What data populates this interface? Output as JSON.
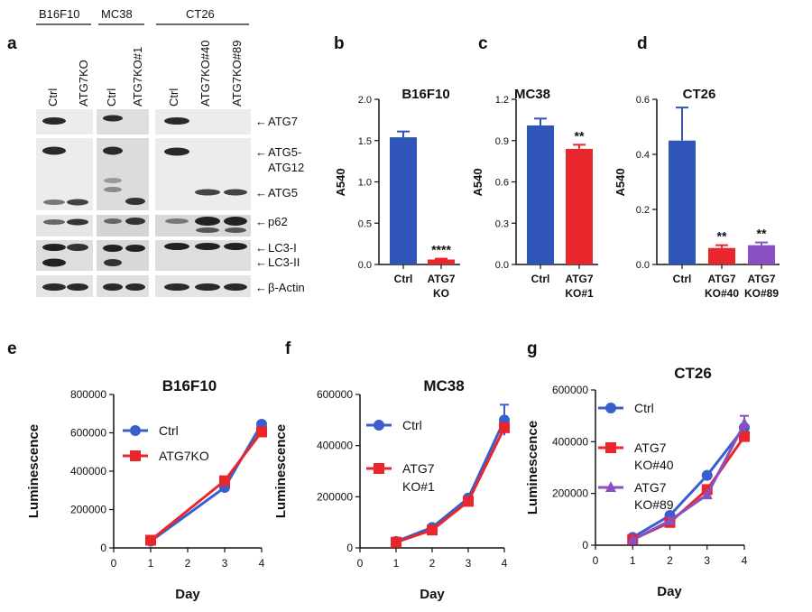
{
  "panel_a": {
    "letter": "a",
    "groups": [
      {
        "name": "B16F10",
        "lanes": [
          "Ctrl",
          "ATG7KO"
        ]
      },
      {
        "name": "MC38",
        "lanes": [
          "Ctrl",
          "ATG7KO#1"
        ]
      },
      {
        "name": "CT26",
        "lanes": [
          "Ctrl",
          "ATG7KO#40",
          "ATG7KO#89"
        ]
      }
    ],
    "proteins": [
      "ATG7",
      "ATG5-",
      "ATG12",
      "ATG5",
      "p62",
      "LC3-I",
      "LC3-II",
      "β-Actin"
    ],
    "arrow": "←"
  },
  "colors": {
    "blue": "#2f55b8",
    "red": "#e8262b",
    "purple": "#8a4fc0",
    "line_blue": "#3a5fcd"
  },
  "chart_data": [
    {
      "panel": "b",
      "type": "bar",
      "title": "B16F10",
      "ylabel": "A540",
      "ylim": [
        0,
        2.0
      ],
      "yticks": [
        "0.0",
        "0.5",
        "1.0",
        "1.5",
        "2.0"
      ],
      "categories": [
        [
          "Ctrl"
        ],
        [
          "ATG7",
          "KO"
        ]
      ],
      "values": [
        1.54,
        0.06
      ],
      "errors": [
        0.07,
        0.01
      ],
      "significance": [
        "",
        "****"
      ]
    },
    {
      "panel": "c",
      "type": "bar",
      "title": "MC38",
      "ylabel": "A540",
      "ylim": [
        0,
        1.2
      ],
      "yticks": [
        "0.0",
        "0.3",
        "0.6",
        "0.9",
        "1.2"
      ],
      "categories": [
        [
          "Ctrl"
        ],
        [
          "ATG7",
          "KO#1"
        ]
      ],
      "values": [
        1.01,
        0.84
      ],
      "errors": [
        0.05,
        0.03
      ],
      "significance": [
        "",
        "**"
      ]
    },
    {
      "panel": "d",
      "type": "bar",
      "title": "CT26",
      "ylabel": "A540",
      "ylim": [
        0,
        0.6
      ],
      "yticks": [
        "0.0",
        "0.2",
        "0.4",
        "0.6"
      ],
      "categories": [
        [
          "Ctrl"
        ],
        [
          "ATG7",
          "KO#40"
        ],
        [
          "ATG7",
          "KO#89"
        ]
      ],
      "values": [
        0.45,
        0.06,
        0.07
      ],
      "errors": [
        0.12,
        0.01,
        0.01
      ],
      "significance": [
        "",
        "**",
        "**"
      ]
    },
    {
      "panel": "e",
      "type": "line",
      "title": "B16F10",
      "xlabel": "Day",
      "ylabel": "Luminescence",
      "xlim": [
        0,
        4
      ],
      "xticks": [
        "0",
        "1",
        "2",
        "3",
        "4"
      ],
      "ylim": [
        0,
        800000
      ],
      "yticks": [
        "0",
        "200000",
        "400000",
        "600000",
        "800000"
      ],
      "series": [
        {
          "name": "Ctrl",
          "x": [
            1,
            3,
            4
          ],
          "values": [
            35000,
            315000,
            645000
          ],
          "errors": [
            0,
            0,
            0
          ]
        },
        {
          "name": "ATG7KO",
          "x": [
            1,
            3,
            4
          ],
          "values": [
            40000,
            350000,
            605000
          ],
          "errors": [
            0,
            0,
            0
          ]
        }
      ]
    },
    {
      "panel": "f",
      "type": "line",
      "title": "MC38",
      "xlabel": "Day",
      "ylabel": "Luminescence",
      "xlim": [
        0,
        4
      ],
      "xticks": [
        "0",
        "1",
        "2",
        "3",
        "4"
      ],
      "ylim": [
        0,
        600000
      ],
      "yticks": [
        "0",
        "200000",
        "400000",
        "600000"
      ],
      "series": [
        {
          "name": "Ctrl",
          "legend": [
            "Ctrl"
          ],
          "x": [
            1,
            2,
            3,
            4
          ],
          "values": [
            25000,
            80000,
            195000,
            500000
          ],
          "errors": [
            0,
            0,
            0,
            60000
          ]
        },
        {
          "name": "ATG7 KO#1",
          "legend": [
            "ATG7",
            "KO#1"
          ],
          "x": [
            1,
            2,
            3,
            4
          ],
          "values": [
            22000,
            70000,
            182000,
            470000
          ],
          "errors": [
            0,
            0,
            0,
            0
          ]
        }
      ]
    },
    {
      "panel": "g",
      "type": "line",
      "title": "CT26",
      "xlabel": "Day",
      "ylabel": "Luminescence",
      "xlim": [
        0,
        4
      ],
      "xticks": [
        "0",
        "1",
        "2",
        "3",
        "4"
      ],
      "ylim": [
        0,
        600000
      ],
      "yticks": [
        "0",
        "200000",
        "400000",
        "600000"
      ],
      "series": [
        {
          "name": "Ctrl",
          "legend": [
            "Ctrl"
          ],
          "x": [
            1,
            2,
            3,
            4
          ],
          "values": [
            30000,
            115000,
            270000,
            455000
          ],
          "errors": [
            0,
            0,
            0,
            0
          ]
        },
        {
          "name": "ATG7 KO#40",
          "legend": [
            "ATG7",
            "KO#40"
          ],
          "x": [
            1,
            2,
            3,
            4
          ],
          "values": [
            22000,
            88000,
            215000,
            420000
          ],
          "errors": [
            0,
            0,
            0,
            0
          ]
        },
        {
          "name": "ATG7 KO#89",
          "legend": [
            "ATG7",
            "KO#89"
          ],
          "x": [
            1,
            2,
            3,
            4
          ],
          "values": [
            20000,
            95000,
            195000,
            470000
          ],
          "errors": [
            0,
            0,
            0,
            30000
          ]
        }
      ]
    }
  ]
}
